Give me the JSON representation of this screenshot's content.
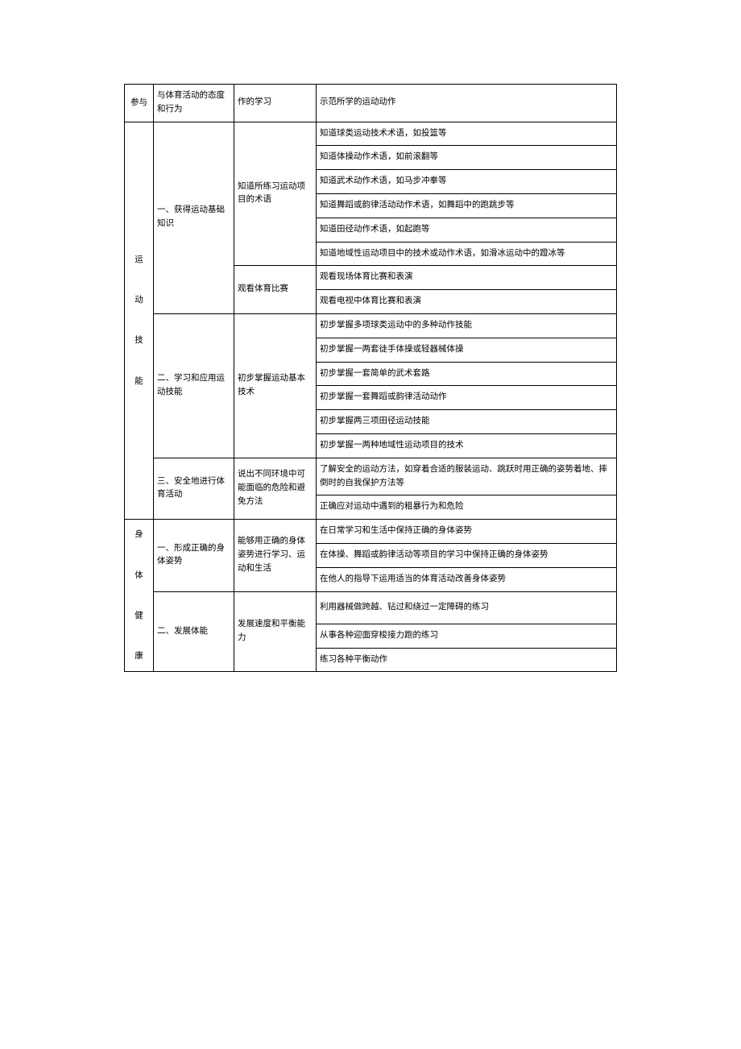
{
  "rows": [
    {
      "c1": "参与",
      "c1rs": 1,
      "c2": "与体育活动的态度和行为",
      "c2rs": 1,
      "c3": "作的学习",
      "c3rs": 1,
      "c4": "示范所学的运动动作"
    },
    {
      "c1": "运\n\n动\n\n技\n\n能",
      "c1rs": 16,
      "c2": "一、获得运动基础知识",
      "c2rs": 8,
      "c3": "知道所练习运动项目的术语",
      "c3rs": 6,
      "c4": "知道球类运动技术术语，如投篮等"
    },
    {
      "c4": "知道体操动作术语，如前滚翻等"
    },
    {
      "c4": "知道武术动作术语，如马步冲拳等"
    },
    {
      "c4": "知道舞蹈或韵律活动动作术语，如舞蹈中的跑跳步等"
    },
    {
      "c4": "知道田径动作术语，如起跑等"
    },
    {
      "c4": "知道地域性运动项目中的技术或动作术语，如滑冰运动中的蹬冰等"
    },
    {
      "c3": "观看体育比赛",
      "c3rs": 2,
      "c4": "观看现场体育比赛和表演"
    },
    {
      "c4": "观看电视中体育比赛和表演"
    },
    {
      "c2": "二、学习和应用运动技能",
      "c2rs": 6,
      "c3": "初步掌握运动基本技术",
      "c3rs": 6,
      "c4": "初步掌握多项球类运动中的多种动作技能"
    },
    {
      "c4": "初步掌握一两套徒手体操或轻器械体操"
    },
    {
      "c4": "初步掌握一套简单的武术套路"
    },
    {
      "c4": "初步掌握一套舞蹈或韵律活动动作"
    },
    {
      "c4": "初步掌握两三项田径运动技能"
    },
    {
      "c4": "初步掌握一两种地域性运动项目的技术"
    },
    {
      "c2": "三、安全地进行体育活动",
      "c2rs": 2,
      "c3": "说出不同环境中可能面临的危险和避免方法",
      "c3rs": 2,
      "c4": "了解安全的运动方法，如穿着合适的服装运动、跳跃时用正确的姿势着地、摔倒时的自我保护方法等"
    },
    {
      "c4": "正确应对运动中遇到的粗暴行为和危险"
    },
    {
      "c1": "身\n\n体\n\n健\n\n康",
      "c1rs": 6,
      "c2": "一、形成正确的身体姿势",
      "c2rs": 3,
      "c3": "能够用正确的身体姿势进行学习、运动和生活",
      "c3rs": 3,
      "c4": "在日常学习和生活中保持正确的身体姿势"
    },
    {
      "c4": "在体操、舞蹈或韵律活动等项目的学习中保持正确的身体姿势"
    },
    {
      "c4": "在他人的指导下运用适当的体育活动改善身体姿势"
    },
    {
      "c2": "二、发展体能",
      "c2rs": 3,
      "c3": "发展速度和平衡能力",
      "c3rs": 3,
      "c4": "利用器械做跨越、钻过和绕过一定障碍的练习"
    },
    {
      "c4": "从事各种迎面穿梭接力跑的练习"
    },
    {
      "c4": "练习各种平衡动作"
    }
  ]
}
